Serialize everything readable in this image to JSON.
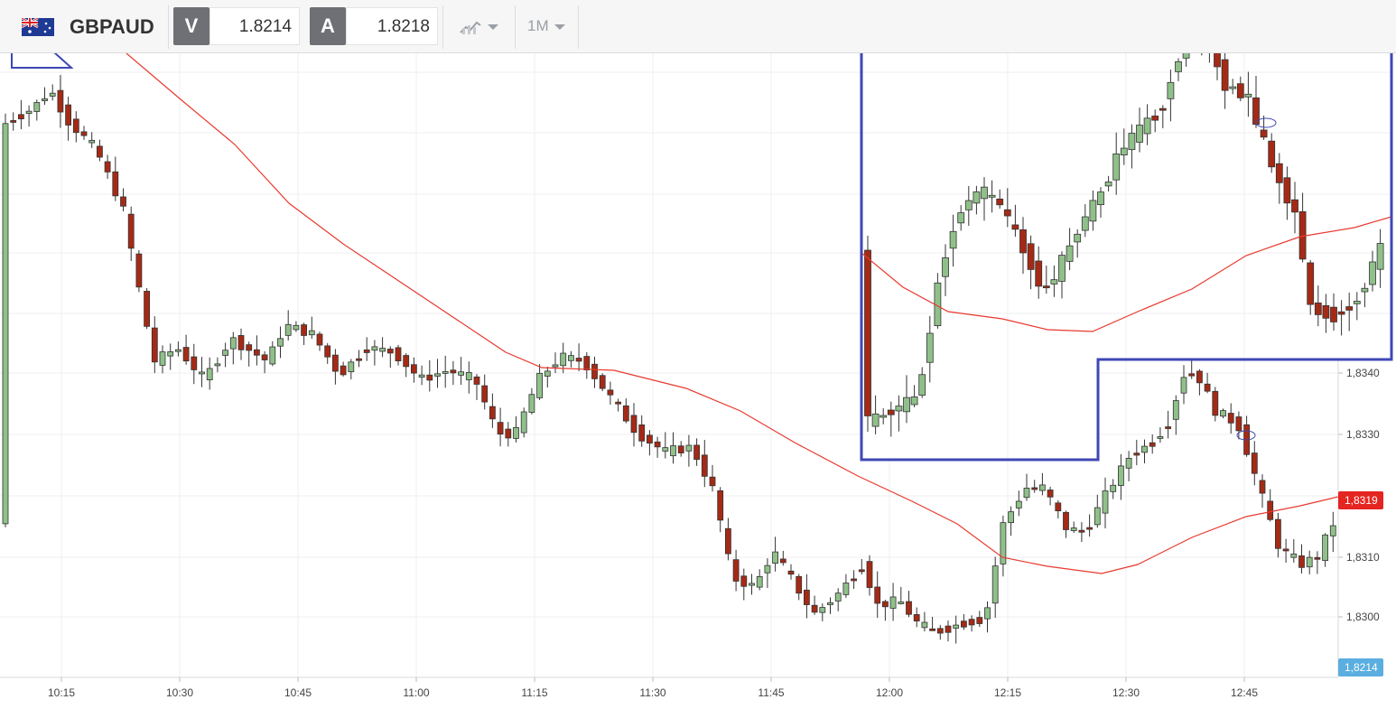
{
  "toolbar": {
    "symbol": "GBPAUD",
    "sell_label": "V",
    "sell_price": "1.8214",
    "buy_label": "A",
    "buy_price": "1.8218",
    "chart_type_icon": "chart-type-icon",
    "timeframe": "1M"
  },
  "colors": {
    "up_candle": "#90c08a",
    "down_candle": "#a52a16",
    "ma_line": "#e8392e",
    "highlight": "#3f47b5",
    "price_tag": "#e52521",
    "bid_tag": "#5aaee0"
  },
  "chart_data": {
    "type": "candlestick",
    "symbol": "GBPAUD",
    "timeframe": "1M",
    "x_ticks": [
      "10:15",
      "10:30",
      "10:45",
      "11:00",
      "11:15",
      "11:30",
      "11:45",
      "12:00",
      "12:15",
      "12:30",
      "12:45"
    ],
    "y_ticks": [
      "1,8340",
      "1,8330",
      "1,8310",
      "1,8300"
    ],
    "current_price_label": "1,8319",
    "bid_label": "1,8214",
    "grid": true,
    "moving_average": true,
    "annotation": "highlighted region around the 12:15–12:55 rally, drawn as an enlarged inset in the top-right"
  }
}
